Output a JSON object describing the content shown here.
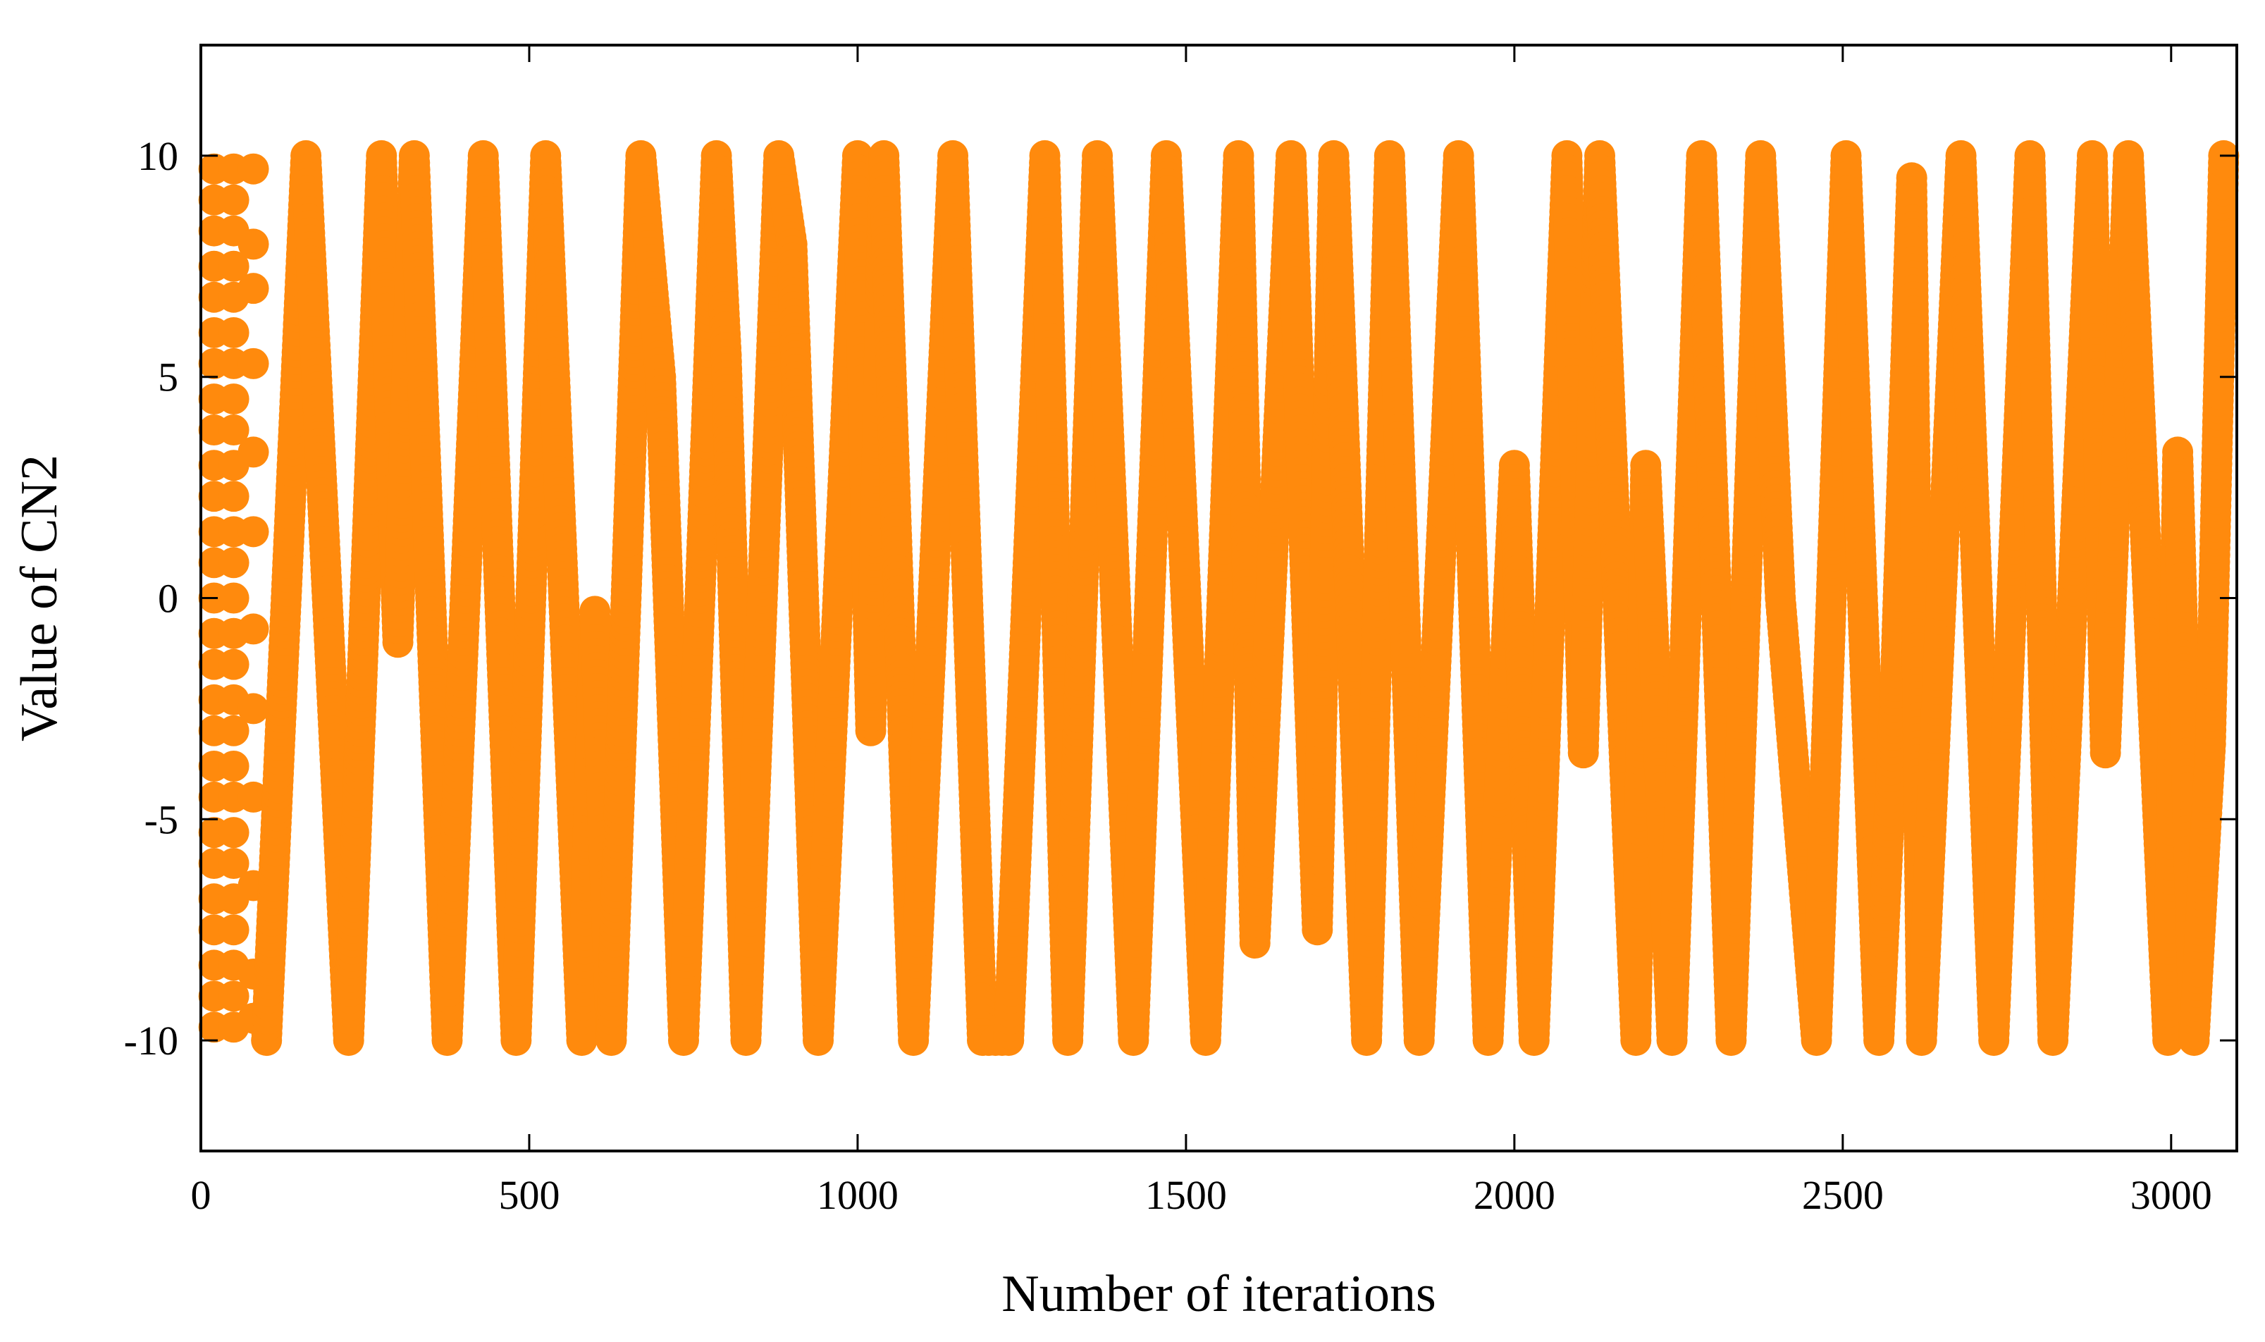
{
  "chart_data": {
    "type": "scatter",
    "title": "",
    "xlabel": "Number of iterations",
    "ylabel": "Value of CN2",
    "xlim": [
      0,
      3100
    ],
    "ylim": [
      -12.5,
      12.5
    ],
    "xticks": [
      0,
      500,
      1000,
      1500,
      2000,
      2500,
      3000
    ],
    "yticks": [
      -10,
      -5,
      0,
      5,
      10
    ],
    "xtick_labels": [
      "0",
      "500",
      "1000",
      "1500",
      "2000",
      "2500",
      "3000"
    ],
    "ytick_labels": [
      "-10",
      "-5",
      "0",
      "5",
      "10"
    ],
    "grid": false,
    "legend": false,
    "marker_color": "#ff8a0d",
    "series": [
      {
        "values_description_omitted": false,
        "columns": [
          {
            "x": 20,
            "y": [
              9.7,
              9.0,
              8.3,
              7.5,
              6.8,
              6.0,
              5.3,
              4.5,
              3.8,
              3.0,
              2.3,
              1.5,
              0.8,
              0.0,
              -0.8,
              -1.5,
              -2.3,
              -3.0,
              -3.8,
              -4.5,
              -5.3,
              -6.0,
              -6.8,
              -7.5,
              -8.3,
              -9.0,
              -9.7
            ]
          },
          {
            "x": 50,
            "y": [
              9.7,
              9.0,
              8.3,
              7.5,
              6.8,
              6.0,
              5.3,
              4.5,
              3.8,
              3.0,
              2.3,
              1.5,
              0.8,
              0.0,
              -0.8,
              -1.5,
              -2.3,
              -3.0,
              -3.8,
              -4.5,
              -5.3,
              -6.0,
              -6.8,
              -7.5,
              -8.3,
              -9.0,
              -9.7
            ]
          },
          {
            "x": 80,
            "y": [
              9.7,
              8.0,
              7.0,
              5.3,
              3.3,
              1.5,
              -0.7,
              -2.5,
              -4.5,
              -6.5,
              -8.5,
              -9.5
            ]
          }
        ],
        "x": [
          100,
          160,
          225,
          275,
          300,
          325,
          375,
          430,
          480,
          525,
          580,
          600,
          625,
          670,
          700,
          735,
          785,
          800,
          830,
          880,
          900,
          940,
          1000,
          1020,
          1040,
          1085,
          1145,
          1190,
          1230,
          1285,
          1320,
          1365,
          1420,
          1470,
          1530,
          1580,
          1605,
          1660,
          1700,
          1725,
          1775,
          1810,
          1855,
          1915,
          1960,
          2000,
          2030,
          2080,
          2105,
          2130,
          2185,
          2200,
          2240,
          2285,
          2330,
          2375,
          2405,
          2460,
          2505,
          2555,
          2580,
          2605,
          2620,
          2680,
          2730,
          2785,
          2820,
          2880,
          2900,
          2935,
          2995,
          3010,
          3035,
          3060,
          3080
        ],
        "y": [
          -10,
          10,
          -10,
          10,
          -1,
          10,
          -10,
          10,
          -10,
          10,
          -10,
          -0.3,
          -10,
          10,
          5,
          -10,
          10,
          5.5,
          -10,
          10,
          8,
          -10,
          10,
          -3,
          10,
          -10,
          10,
          -10,
          -10,
          10,
          -10,
          10,
          -10,
          10,
          -10,
          10,
          -7.8,
          10,
          -7.5,
          10,
          -10,
          10,
          -10,
          10,
          -10,
          3,
          -10,
          10,
          -3.5,
          10,
          -10,
          3,
          -10,
          10,
          -10,
          10,
          0,
          -10,
          10,
          -10,
          -2,
          9.5,
          -10,
          10,
          -10,
          10,
          -10,
          10,
          -3.5,
          10,
          -10,
          3.3,
          -10,
          -3.3,
          10
        ]
      }
    ]
  }
}
